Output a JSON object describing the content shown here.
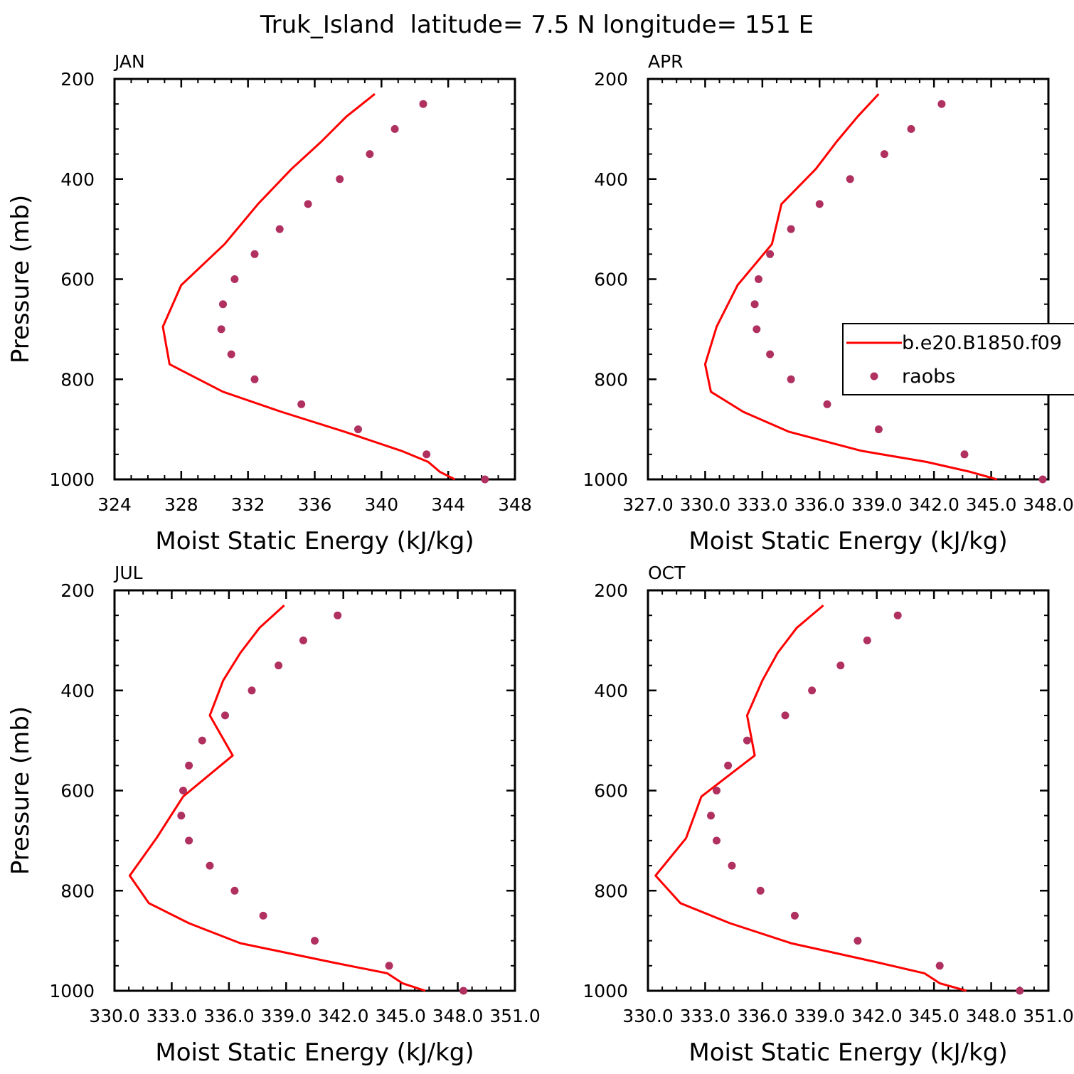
{
  "figure_title": "Truk_Island  latitude= 7.5 N longitude= 151 E",
  "legend": {
    "model_label": "b.e20.B1850.f09",
    "obs_label": "raobs"
  },
  "colors": {
    "model": "#ff0000",
    "obs": "#b03060",
    "axis": "#000000"
  },
  "chart_data": [
    {
      "type": "line",
      "panel": "JAN",
      "xlabel": "Moist Static Energy (kJ/kg)",
      "ylabel": "Pressure (mb)",
      "xlim": [
        324,
        348
      ],
      "ylim": [
        1000,
        200
      ],
      "xticks": [
        324,
        328,
        332,
        336,
        340,
        344,
        348
      ],
      "xtick_labels": [
        "324",
        "328",
        "332",
        "336",
        "340",
        "344",
        "348"
      ],
      "yticks": [
        200,
        400,
        600,
        800,
        1000
      ],
      "ytick_labels": [
        "200",
        "400",
        "600",
        "800",
        "1000"
      ],
      "show_ylabel": true,
      "show_legend": false,
      "series": [
        {
          "name": "b.e20.B1850.f09",
          "kind": "line",
          "x": [
            339.6,
            337.9,
            336.4,
            334.6,
            332.6,
            330.6,
            328.0,
            326.9,
            327.3,
            330.5,
            334.0,
            337.8,
            341.2,
            342.8,
            343.5,
            344.4
          ],
          "y": [
            230,
            275,
            325,
            380,
            450,
            530,
            612,
            695,
            770,
            825,
            865,
            905,
            943,
            965,
            985,
            1000
          ]
        },
        {
          "name": "raobs",
          "kind": "scatter",
          "x": [
            342.5,
            340.8,
            339.3,
            337.5,
            335.6,
            333.9,
            332.4,
            331.2,
            330.5,
            330.4,
            331.0,
            332.4,
            335.2,
            338.6,
            342.7,
            346.2
          ],
          "y": [
            250,
            300,
            350,
            400,
            450,
            500,
            550,
            600,
            650,
            700,
            750,
            800,
            850,
            900,
            950,
            1000
          ]
        }
      ]
    },
    {
      "type": "line",
      "panel": "APR",
      "xlabel": "Moist Static Energy (kJ/kg)",
      "ylabel": "Pressure (mb)",
      "xlim": [
        327.0,
        348.0
      ],
      "ylim": [
        1000,
        200
      ],
      "xticks": [
        327.0,
        330.0,
        333.0,
        336.0,
        339.0,
        342.0,
        345.0,
        348.0
      ],
      "xtick_labels": [
        "327.0",
        "330.0",
        "333.0",
        "336.0",
        "339.0",
        "342.0",
        "345.0",
        "348.0"
      ],
      "yticks": [
        200,
        400,
        600,
        800,
        1000
      ],
      "ytick_labels": [
        "200",
        "400",
        "600",
        "800",
        "1000"
      ],
      "show_ylabel": false,
      "show_legend": true,
      "series": [
        {
          "name": "b.e20.B1850.f09",
          "kind": "line",
          "x": [
            339.1,
            338.0,
            336.9,
            335.8,
            334.0,
            333.5,
            331.7,
            330.6,
            330.0,
            330.3,
            332.0,
            334.4,
            338.2,
            341.6,
            343.9,
            345.3
          ],
          "y": [
            230,
            275,
            325,
            380,
            450,
            530,
            612,
            695,
            770,
            825,
            865,
            905,
            943,
            965,
            985,
            1000
          ]
        },
        {
          "name": "raobs",
          "kind": "scatter",
          "x": [
            342.4,
            340.8,
            339.4,
            337.6,
            336.0,
            334.5,
            333.4,
            332.8,
            332.6,
            332.7,
            333.4,
            334.5,
            336.4,
            339.1,
            343.6,
            347.7
          ],
          "y": [
            250,
            300,
            350,
            400,
            450,
            500,
            550,
            600,
            650,
            700,
            750,
            800,
            850,
            900,
            950,
            1000
          ]
        }
      ]
    },
    {
      "type": "line",
      "panel": "JUL",
      "xlabel": "Moist Static Energy (kJ/kg)",
      "ylabel": "Pressure (mb)",
      "xlim": [
        330.0,
        351.0
      ],
      "ylim": [
        1000,
        200
      ],
      "xticks": [
        330.0,
        333.0,
        336.0,
        339.0,
        342.0,
        345.0,
        348.0,
        351.0
      ],
      "xtick_labels": [
        "330.0",
        "333.0",
        "336.0",
        "339.0",
        "342.0",
        "345.0",
        "348.0",
        "351.0"
      ],
      "yticks": [
        200,
        400,
        600,
        800,
        1000
      ],
      "ytick_labels": [
        "200",
        "400",
        "600",
        "800",
        "1000"
      ],
      "show_ylabel": true,
      "show_legend": false,
      "series": [
        {
          "name": "b.e20.B1850.f09",
          "kind": "line",
          "x": [
            338.9,
            337.6,
            336.6,
            335.7,
            335.0,
            336.2,
            333.6,
            332.2,
            330.8,
            331.8,
            333.9,
            336.6,
            341.4,
            344.3,
            345.1,
            346.3
          ],
          "y": [
            230,
            275,
            325,
            380,
            450,
            530,
            612,
            695,
            770,
            825,
            865,
            905,
            943,
            965,
            985,
            1000
          ]
        },
        {
          "name": "raobs",
          "kind": "scatter",
          "x": [
            341.7,
            339.9,
            338.6,
            337.2,
            335.8,
            334.6,
            333.9,
            333.6,
            333.5,
            333.9,
            335.0,
            336.3,
            337.8,
            340.5,
            344.4,
            348.3
          ],
          "y": [
            250,
            300,
            350,
            400,
            450,
            500,
            550,
            600,
            650,
            700,
            750,
            800,
            850,
            900,
            950,
            1000
          ]
        }
      ]
    },
    {
      "type": "line",
      "panel": "OCT",
      "xlabel": "Moist Static Energy (kJ/kg)",
      "ylabel": "Pressure (mb)",
      "xlim": [
        330.0,
        351.0
      ],
      "ylim": [
        1000,
        200
      ],
      "xticks": [
        330.0,
        333.0,
        336.0,
        339.0,
        342.0,
        345.0,
        348.0,
        351.0
      ],
      "xtick_labels": [
        "330.0",
        "333.0",
        "336.0",
        "339.0",
        "342.0",
        "345.0",
        "348.0",
        "351.0"
      ],
      "yticks": [
        200,
        400,
        600,
        800,
        1000
      ],
      "ytick_labels": [
        "200",
        "400",
        "600",
        "800",
        "1000"
      ],
      "show_ylabel": false,
      "show_legend": false,
      "series": [
        {
          "name": "b.e20.B1850.f09",
          "kind": "line",
          "x": [
            339.2,
            337.8,
            336.8,
            336.0,
            335.2,
            335.6,
            332.8,
            332.0,
            330.4,
            331.7,
            334.3,
            337.5,
            342.0,
            344.5,
            345.3,
            346.7
          ],
          "y": [
            230,
            275,
            325,
            380,
            450,
            530,
            612,
            695,
            770,
            825,
            865,
            905,
            943,
            965,
            985,
            1000
          ]
        },
        {
          "name": "raobs",
          "kind": "scatter",
          "x": [
            343.1,
            341.5,
            340.1,
            338.6,
            337.2,
            335.2,
            334.2,
            333.6,
            333.3,
            333.6,
            334.4,
            335.9,
            337.7,
            341.0,
            345.3,
            349.5
          ],
          "y": [
            250,
            300,
            350,
            400,
            450,
            500,
            550,
            600,
            650,
            700,
            750,
            800,
            850,
            900,
            950,
            1000
          ]
        }
      ]
    }
  ]
}
